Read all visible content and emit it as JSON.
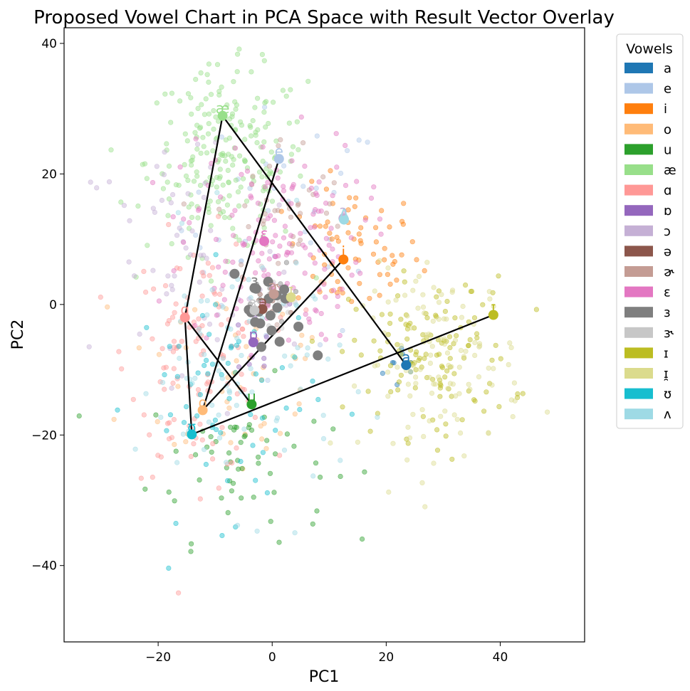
{
  "chart_data": {
    "type": "scatter",
    "title": "Proposed Vowel Chart in PCA Space with Result Vector Overlay",
    "xlabel": "PC1",
    "ylabel": "PC2",
    "xlim": [
      -36.5,
      54.8
    ],
    "ylim": [
      -51.7,
      42.4
    ],
    "xticks": [
      -20,
      0,
      20,
      40
    ],
    "yticks": [
      40,
      20,
      0,
      -20,
      -40
    ],
    "grid": false,
    "legend": {
      "title": "Vowels",
      "placement": "upper-right-outside",
      "entries": [
        {
          "label": "a",
          "color": "#1f77b4"
        },
        {
          "label": "e",
          "color": "#aec7e8"
        },
        {
          "label": "i",
          "color": "#ff7f0e"
        },
        {
          "label": "o",
          "color": "#ffbb78"
        },
        {
          "label": "u",
          "color": "#2ca02c"
        },
        {
          "label": "æ",
          "color": "#98df8a"
        },
        {
          "label": "ɑ",
          "color": "#ff9896"
        },
        {
          "label": "ɒ",
          "color": "#9467bd"
        },
        {
          "label": "ɔ",
          "color": "#c5b0d5"
        },
        {
          "label": "ə",
          "color": "#8c564b"
        },
        {
          "label": "ɚ",
          "color": "#c49c94"
        },
        {
          "label": "ɛ",
          "color": "#e377c2"
        },
        {
          "label": "ɜ",
          "color": "#7f7f7f"
        },
        {
          "label": "ɝ",
          "color": "#c7c7c7"
        },
        {
          "label": "ɪ",
          "color": "#bcbd22"
        },
        {
          "label": "ɪ̯",
          "color": "#dbdb8d"
        },
        {
          "label": "ʊ",
          "color": "#17becf"
        },
        {
          "label": "ʌ",
          "color": "#9edae5"
        }
      ]
    },
    "clusters": [
      {
        "label": "a",
        "center": [
          23.5,
          -9.5
        ],
        "spread": [
          2,
          2
        ],
        "count": 10
      },
      {
        "label": "e",
        "center": [
          2,
          12
        ],
        "spread": [
          9,
          9
        ],
        "count": 40
      },
      {
        "label": "i",
        "center": [
          14,
          8
        ],
        "spread": [
          6,
          5
        ],
        "count": 70
      },
      {
        "label": "o",
        "center": [
          -6,
          -10
        ],
        "spread": [
          10,
          9
        ],
        "count": 50
      },
      {
        "label": "u",
        "center": [
          -6,
          -24
        ],
        "spread": [
          8,
          6
        ],
        "count": 60
      },
      {
        "label": "æ",
        "center": [
          -8,
          22
        ],
        "spread": [
          7,
          7
        ],
        "count": 220
      },
      {
        "label": "ɑ",
        "center": [
          -13,
          -8
        ],
        "spread": [
          6,
          9
        ],
        "count": 120
      },
      {
        "label": "ɒ",
        "center": [
          -3,
          -6
        ],
        "spread": [
          3,
          3
        ],
        "count": 10
      },
      {
        "label": "ɔ",
        "center": [
          -15,
          5
        ],
        "spread": [
          10,
          12
        ],
        "count": 60
      },
      {
        "label": "ə",
        "center": [
          -1,
          0
        ],
        "spread": [
          2,
          2
        ],
        "count": 8
      },
      {
        "label": "ɚ",
        "center": [
          2,
          14
        ],
        "spread": [
          6,
          6
        ],
        "count": 40
      },
      {
        "label": "ɛ",
        "center": [
          0,
          10
        ],
        "spread": [
          8,
          8
        ],
        "count": 160
      },
      {
        "label": "ɜ",
        "center": [
          0,
          0
        ],
        "spread": [
          3,
          3
        ],
        "count": 10
      },
      {
        "label": "ɝ",
        "center": [
          1,
          1
        ],
        "spread": [
          3,
          3
        ],
        "count": 10
      },
      {
        "label": "ɪ",
        "center": [
          28,
          -8
        ],
        "spread": [
          7,
          6
        ],
        "count": 130
      },
      {
        "label": "ɪ̯",
        "center": [
          30,
          -9
        ],
        "spread": [
          7,
          7
        ],
        "count": 120
      },
      {
        "label": "ʊ",
        "center": [
          -8,
          -14
        ],
        "spread": [
          8,
          9
        ],
        "count": 60
      },
      {
        "label": "ʌ",
        "center": [
          -6,
          -10
        ],
        "spread": [
          9,
          10
        ],
        "count": 90
      }
    ],
    "centroids": [
      {
        "label": "a",
        "x": 23.5,
        "y": -9.3
      },
      {
        "label": "e",
        "x": 1.2,
        "y": 22.3
      },
      {
        "label": "i",
        "x": 12.5,
        "y": 6.9
      },
      {
        "label": "o",
        "x": -12.2,
        "y": -16.2
      },
      {
        "label": "u",
        "x": -3.6,
        "y": -15.3
      },
      {
        "label": "æ",
        "x": -8.7,
        "y": 28.9
      },
      {
        "label": "ɑ",
        "x": -15.3,
        "y": -2.0
      },
      {
        "label": "ɒ",
        "x": -3.3,
        "y": -5.8
      },
      {
        "label": "ɔ",
        "x": 12.5,
        "y": 13.2
      },
      {
        "label": "ə",
        "x": -1.7,
        "y": -0.7
      },
      {
        "label": "ɚ",
        "x": 0.3,
        "y": 1.6
      },
      {
        "label": "ɛ",
        "x": -1.4,
        "y": 9.7
      },
      {
        "label": "ɜ",
        "x": -3.1,
        "y": 2.5
      },
      {
        "label": "ɝ",
        "x": -3.1,
        "y": -0.9
      },
      {
        "label": "ɪ",
        "x": 38.8,
        "y": -1.6
      },
      {
        "label": "ɪ̯",
        "x": 3.3,
        "y": 1.1
      },
      {
        "label": "ʊ",
        "x": -14.1,
        "y": -19.9
      },
      {
        "label": "ʌ",
        "x": 12.6,
        "y": 13.0
      }
    ],
    "extra_centroids_ɜ": [
      [
        -6.6,
        4.7
      ],
      [
        -3.7,
        -1.2
      ],
      [
        -2.8,
        2.4
      ],
      [
        -3.0,
        -2.7
      ],
      [
        -2.3,
        -1.1
      ],
      [
        -0.6,
        0.9
      ],
      [
        0.8,
        1.4
      ],
      [
        2.1,
        2.3
      ],
      [
        0.9,
        -0.5
      ],
      [
        -0.3,
        -1.7
      ],
      [
        -2.1,
        -2.9
      ],
      [
        4.6,
        -3.4
      ],
      [
        1.3,
        -5.7
      ],
      [
        -4.1,
        -0.8
      ],
      [
        -0.1,
        -4.0
      ],
      [
        -0.7,
        3.5
      ],
      [
        2.3,
        0.9
      ],
      [
        8.0,
        -7.8
      ],
      [
        -1.9,
        -6.5
      ]
    ],
    "overlay_path": [
      {
        "label": "ɪ",
        "x": 38.8,
        "y": -1.6
      },
      {
        "label": "ʊ",
        "x": -14.1,
        "y": -19.9
      },
      {
        "label": "ɑ",
        "x": -15.3,
        "y": -2.0
      },
      {
        "label": "æ",
        "x": -8.7,
        "y": 28.9
      },
      {
        "label": "a",
        "x": 23.5,
        "y": -9.3
      }
    ],
    "overlay_path_2": [
      {
        "label": "e",
        "x": 1.2,
        "y": 22.3
      },
      {
        "label": "o",
        "x": -12.2,
        "y": -16.2
      },
      {
        "label": "i",
        "x": 12.5,
        "y": 6.9
      }
    ],
    "overlay_path_3": [
      {
        "label": "ɑ",
        "x": -15.3,
        "y": -2.0
      },
      {
        "label": "u",
        "x": -3.6,
        "y": -15.3
      }
    ]
  }
}
